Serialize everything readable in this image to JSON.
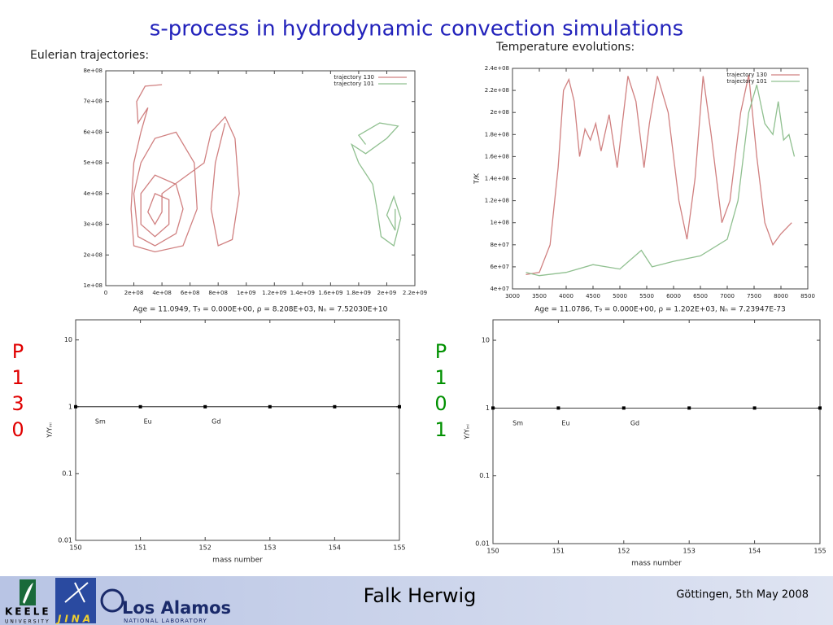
{
  "title": "s-process in hydrodynamic convection simulations",
  "headings": [
    "Eulerian trajectories:",
    "Temperature evolutions:"
  ],
  "side_labels": [
    "P130",
    "P101"
  ],
  "footer": {
    "name": "Falk Herwig",
    "place_date": "Göttingen, 5th May 2008",
    "keele": "KEELE",
    "keele_sub": "UNIVERSITY",
    "jina": "JINA",
    "lanl": "Los Alamos",
    "lanl_sub": "NATIONAL LABORATORY"
  },
  "chart_data": [
    {
      "type": "line",
      "caption": "Age = 11.0949, T₉ = 0.000E+00, ρ = 8.208E+03, Nₙ = 7.52030E+10",
      "xlim": [
        0,
        2200000000.0
      ],
      "ylim": [
        100000000.0,
        800000000.0
      ],
      "xticks": [
        0,
        {
          "value": 200000000.0,
          "label": "2e+08"
        },
        {
          "value": 400000000.0,
          "label": "4e+08"
        },
        {
          "value": 600000000.0,
          "label": "6e+08"
        },
        {
          "value": 800000000.0,
          "label": "8e+08"
        },
        {
          "value": 1000000000.0,
          "label": "1e+09"
        },
        {
          "value": 1200000000.0,
          "label": "1.2e+09"
        },
        {
          "value": 1400000000.0,
          "label": "1.4e+09"
        },
        {
          "value": 1600000000.0,
          "label": "1.6e+09"
        },
        {
          "value": 1800000000.0,
          "label": "1.8e+09"
        },
        {
          "value": 2000000000.0,
          "label": "2e+09"
        },
        {
          "value": 2200000000.0,
          "label": "2.2e+09"
        }
      ],
      "yticks": [
        {
          "value": 100000000.0,
          "label": "1e+08"
        },
        {
          "value": 200000000.0,
          "label": "2e+08"
        },
        {
          "value": 300000000.0,
          "label": "3e+08"
        },
        {
          "value": 400000000.0,
          "label": "4e+08"
        },
        {
          "value": 500000000.0,
          "label": "5e+08"
        },
        {
          "value": 600000000.0,
          "label": "6e+08"
        },
        {
          "value": 700000000.0,
          "label": "7e+08"
        },
        {
          "value": 800000000.0,
          "label": "8e+08"
        }
      ],
      "legend": "upper right",
      "series": [
        {
          "name": "trajectory 130",
          "color": "#d08080",
          "x": [
            400000000.0,
            280000000.0,
            220000000.0,
            230000000.0,
            300000000.0,
            250000000.0,
            200000000.0,
            180000000.0,
            200000000.0,
            350000000.0,
            550000000.0,
            650000000.0,
            630000000.0,
            500000000.0,
            350000000.0,
            250000000.0,
            200000000.0,
            230000000.0,
            350000000.0,
            500000000.0,
            550000000.0,
            500000000.0,
            350000000.0,
            250000000.0,
            250000000.0,
            350000000.0,
            450000000.0,
            450000000.0,
            350000000.0,
            300000000.0,
            350000000.0,
            400000000.0,
            400000000.0,
            550000000.0,
            700000000.0,
            750000000.0,
            850000000.0,
            920000000.0,
            950000000.0,
            900000000.0,
            800000000.0,
            750000000.0,
            780000000.0,
            850000000.0
          ],
          "values": [
            755000000.0,
            750000000.0,
            700000000.0,
            630000000.0,
            680000000.0,
            600000000.0,
            500000000.0,
            350000000.0,
            230000000.0,
            210000000.0,
            230000000.0,
            350000000.0,
            500000000.0,
            600000000.0,
            580000000.0,
            500000000.0,
            400000000.0,
            260000000.0,
            230000000.0,
            270000000.0,
            350000000.0,
            430000000.0,
            460000000.0,
            400000000.0,
            300000000.0,
            260000000.0,
            300000000.0,
            380000000.0,
            400000000.0,
            340000000.0,
            300000000.0,
            340000000.0,
            400000000.0,
            450000000.0,
            500000000.0,
            600000000.0,
            650000000.0,
            580000000.0,
            400000000.0,
            250000000.0,
            230000000.0,
            350000000.0,
            500000000.0,
            630000000.0
          ]
        },
        {
          "name": "trajectory 101",
          "color": "#90c090",
          "x": [
            1850000000.0,
            1800000000.0,
            1950000000.0,
            2080000000.0,
            2000000000.0,
            1850000000.0,
            1750000000.0,
            1800000000.0,
            1900000000.0,
            1930000000.0,
            1960000000.0,
            2050000000.0,
            2100000000.0,
            2050000000.0,
            2000000000.0,
            2060000000.0,
            2060000000.0
          ],
          "values": [
            560000000.0,
            590000000.0,
            630000000.0,
            620000000.0,
            580000000.0,
            530000000.0,
            560000000.0,
            500000000.0,
            430000000.0,
            350000000.0,
            260000000.0,
            230000000.0,
            320000000.0,
            390000000.0,
            330000000.0,
            280000000.0,
            350000000.0
          ]
        }
      ]
    },
    {
      "type": "line",
      "caption": "Age = 11.0786, T₉ = 0.000E+00, ρ = 1.202E+03, Nₙ = 7.23947E-73",
      "ylabel": "T/K",
      "xlim": [
        3000,
        8500
      ],
      "ylim": [
        40000000.0,
        240000000.0
      ],
      "xticks": [
        3000,
        3500,
        4000,
        4500,
        5000,
        5500,
        6000,
        6500,
        7000,
        7500,
        8000,
        8500
      ],
      "yticks": [
        {
          "value": 40000000.0,
          "label": "4e+07"
        },
        {
          "value": 60000000.0,
          "label": "6e+07"
        },
        {
          "value": 80000000.0,
          "label": "8e+07"
        },
        {
          "value": 100000000.0,
          "label": "1e+08"
        },
        {
          "value": 120000000.0,
          "label": "1.2e+08"
        },
        {
          "value": 140000000.0,
          "label": "1.4e+08"
        },
        {
          "value": 160000000.0,
          "label": "1.6e+08"
        },
        {
          "value": 180000000.0,
          "label": "1.8e+08"
        },
        {
          "value": 200000000.0,
          "label": "2e+08"
        },
        {
          "value": 220000000.0,
          "label": "2.2e+08"
        },
        {
          "value": 240000000.0,
          "label": "2.4e+08"
        }
      ],
      "legend": "upper right",
      "series": [
        {
          "name": "trajectory 130",
          "color": "#d08080",
          "x": [
            3250,
            3500,
            3700,
            3850,
            3950,
            4050,
            4150,
            4250,
            4350,
            4450,
            4550,
            4650,
            4800,
            4950,
            5150,
            5300,
            5450,
            5550,
            5700,
            5900,
            6100,
            6250,
            6400,
            6550,
            6700,
            6900,
            7050,
            7250,
            7400,
            7550,
            7700,
            7850,
            8000,
            8200
          ],
          "values": [
            53000000.0,
            55000000.0,
            80000000.0,
            150000000.0,
            220000000.0,
            230000000.0,
            210000000.0,
            160000000.0,
            185000000.0,
            175000000.0,
            190000000.0,
            165000000.0,
            198000000.0,
            150000000.0,
            233000000.0,
            210000000.0,
            150000000.0,
            190000000.0,
            233000000.0,
            200000000.0,
            120000000.0,
            85000000.0,
            140000000.0,
            233000000.0,
            180000000.0,
            100000000.0,
            120000000.0,
            200000000.0,
            234000000.0,
            160000000.0,
            100000000.0,
            80000000.0,
            90000000.0,
            100000000.0
          ]
        },
        {
          "name": "trajectory 101",
          "color": "#90c090",
          "x": [
            3250,
            3500,
            4000,
            4500,
            5000,
            5400,
            5600,
            6000,
            6500,
            7000,
            7200,
            7400,
            7550,
            7700,
            7850,
            7950,
            8050,
            8150,
            8250
          ],
          "values": [
            55000000.0,
            52000000.0,
            55000000.0,
            62000000.0,
            58000000.0,
            75000000.0,
            60000000.0,
            65000000.0,
            70000000.0,
            85000000.0,
            120000000.0,
            200000000.0,
            225000000.0,
            190000000.0,
            180000000.0,
            210000000.0,
            175000000.0,
            180000000.0,
            160000000.0
          ]
        }
      ]
    },
    {
      "type": "line",
      "log_y": true,
      "markers": true,
      "xlabel": "mass number",
      "ylabel": "Y/Yᵢₙᵢ",
      "xlim": [
        150,
        155
      ],
      "ylim": [
        0.01,
        20
      ],
      "xticks": [
        150,
        151,
        152,
        153,
        154,
        155
      ],
      "yticks": [
        0.01,
        0.1,
        1,
        10
      ],
      "series": [
        {
          "color": "#000000",
          "x": [
            150,
            151,
            152,
            153,
            154,
            155
          ],
          "values": [
            1,
            1,
            1,
            1,
            1,
            1
          ]
        }
      ],
      "annotations": [
        {
          "text": "Sm",
          "x": 150.3,
          "y": 0.6
        },
        {
          "text": "Eu",
          "x": 151.05,
          "y": 0.6
        },
        {
          "text": "Gd",
          "x": 152.1,
          "y": 0.6
        }
      ]
    },
    {
      "type": "line",
      "log_y": true,
      "markers": true,
      "xlabel": "mass number",
      "ylabel": "Y/Yᵢₙᵢ",
      "xlim": [
        150,
        155
      ],
      "ylim": [
        0.01,
        20
      ],
      "xticks": [
        150,
        151,
        152,
        153,
        154,
        155
      ],
      "yticks": [
        0.01,
        0.1,
        1,
        10
      ],
      "series": [
        {
          "color": "#000000",
          "x": [
            150,
            151,
            152,
            153,
            154,
            155
          ],
          "values": [
            1,
            1,
            1,
            1,
            1,
            1
          ]
        }
      ],
      "annotations": [
        {
          "text": "Sm",
          "x": 150.3,
          "y": 0.6
        },
        {
          "text": "Eu",
          "x": 151.05,
          "y": 0.6
        },
        {
          "text": "Gd",
          "x": 152.1,
          "y": 0.6
        }
      ]
    }
  ]
}
